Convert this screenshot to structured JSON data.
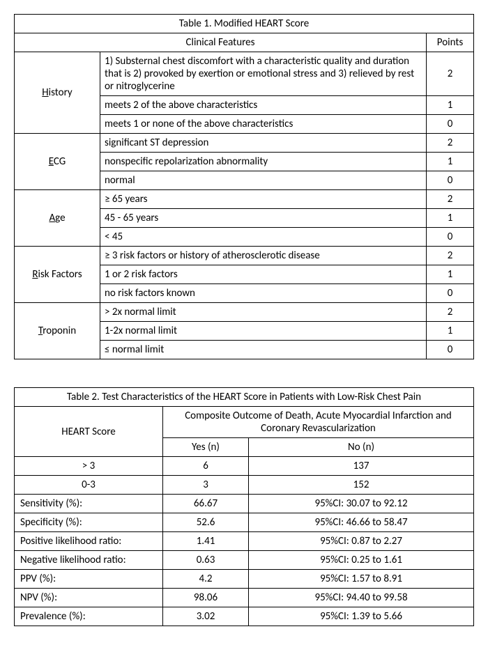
{
  "table1": {
    "title": "Table 1.  Modified HEART Score",
    "features_label": "Clinical Features",
    "points_label": "Points",
    "rows": [
      {
        "cat_u": "H",
        "cat_rest": "istory",
        "items": [
          {
            "desc": "1) Substernal chest discomfort with a characteristic quality and duration that is 2) provoked by exertion or emotional stress and 3) relieved by rest or nitroglycerine",
            "pts": "2"
          },
          {
            "desc": "meets 2 of the above characteristics",
            "pts": "1"
          },
          {
            "desc": "meets 1 or none of the above characteristics",
            "pts": "0"
          }
        ]
      },
      {
        "cat_u": "E",
        "cat_rest": "CG",
        "items": [
          {
            "desc": "significant ST depression",
            "pts": "2"
          },
          {
            "desc": "nonspecific repolarization abnormality",
            "pts": "1"
          },
          {
            "desc": "normal",
            "pts": "0"
          }
        ]
      },
      {
        "cat_u": "A",
        "cat_rest": "ge",
        "items": [
          {
            "desc": "≥ 65 years",
            "pts": "2"
          },
          {
            "desc": "45 - 65 years",
            "pts": "1"
          },
          {
            "desc": "< 45",
            "pts": "0"
          }
        ]
      },
      {
        "cat_u": "R",
        "cat_rest": "isk Factors",
        "items": [
          {
            "desc": "≥ 3 risk factors or history of atherosclerotic disease",
            "pts": "2"
          },
          {
            "desc": "1 or 2 risk factors",
            "pts": "1"
          },
          {
            "desc": "no risk factors known",
            "pts": "0"
          }
        ]
      },
      {
        "cat_u": "T",
        "cat_rest": "roponin",
        "items": [
          {
            "desc": "> 2x normal limit",
            "pts": "2"
          },
          {
            "desc": "1-2x normal limit",
            "pts": "1"
          },
          {
            "desc": "≤ normal limit",
            "pts": "0"
          }
        ]
      }
    ]
  },
  "table2": {
    "title": "Table 2. Test Characteristics of the HEART Score in Patients with Low-Risk Chest Pain",
    "col1_header": "HEART Score",
    "outcome_header": "Composite Outcome of Death, Acute Myocardial Infarction and Coronary Revascularization",
    "yes_label": "Yes (n)",
    "no_label": "No (n)",
    "score_rows": [
      {
        "label": "> 3",
        "yes": "6",
        "no": "137"
      },
      {
        "label": "0-3",
        "yes": "3",
        "no": "152"
      }
    ],
    "stat_rows": [
      {
        "label": "Sensitivity (%):",
        "val": "66.67",
        "ci": "95%CI: 30.07 to 92.12"
      },
      {
        "label": "Specificity (%):",
        "val": "52.6",
        "ci": "95%CI: 46.66 to 58.47"
      },
      {
        "label": "Positive likelihood ratio:",
        "val": "1.41",
        "ci": "95%CI: 0.87 to 2.27"
      },
      {
        "label": "Negative likelihood ratio:",
        "val": "0.63",
        "ci": "95%CI: 0.25 to 1.61"
      },
      {
        "label": "PPV (%):",
        "val": "4.2",
        "ci": "95%CI: 1.57 to 8.91"
      },
      {
        "label": "NPV (%):",
        "val": "98.06",
        "ci": "95%CI: 94.40 to 99.58"
      },
      {
        "label": "Prevalence (%):",
        "val": "3.02",
        "ci": "95%CI: 1.39 to 5.66"
      }
    ]
  }
}
